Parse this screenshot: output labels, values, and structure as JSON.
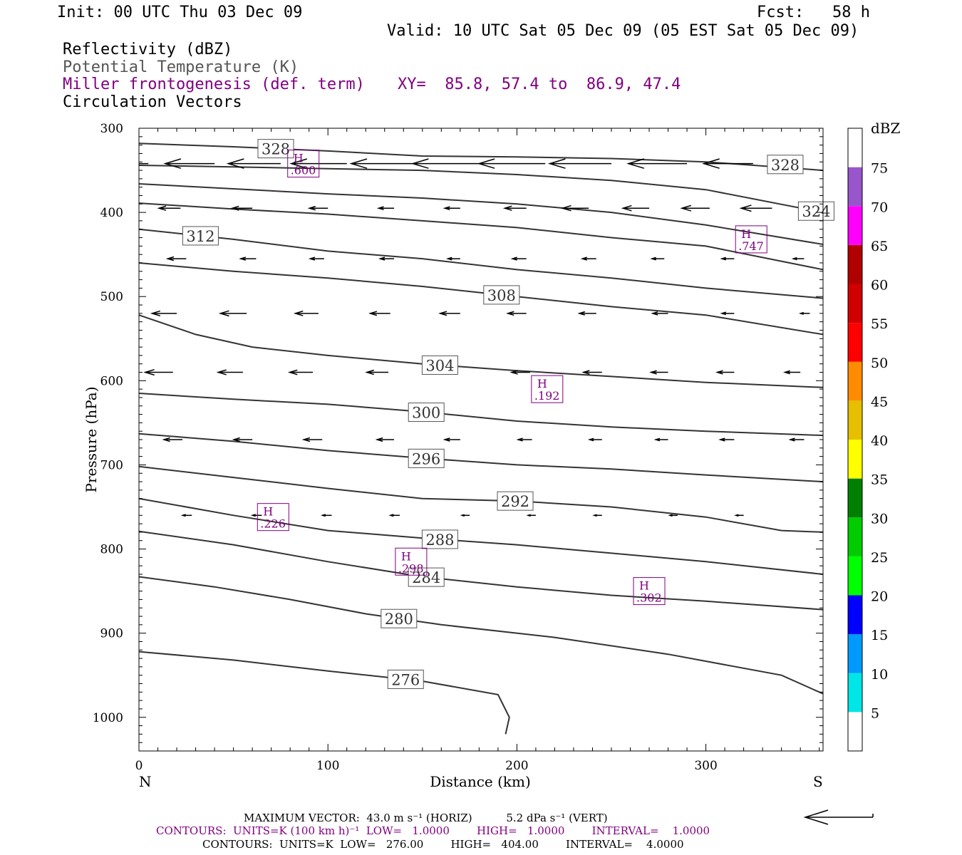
{
  "header": {
    "init": "Init: 00 UTC Thu 03 Dec 09",
    "fcst": "Fcst:   58 h",
    "valid": "Valid: 10 UTC Sat 05 Dec 09 (05 EST Sat 05 Dec 09)",
    "field1": "Reflectivity (dBZ)",
    "field2": "Potential Temperature (K)",
    "field3": "Miller frontogenesis (def. term)",
    "xy": "XY=  85.8, 57.4 to  86.9, 47.4",
    "field4": "Circulation Vectors"
  },
  "axes": {
    "ylabel": "Pressure (hPa)",
    "xlabel": "Distance (km)",
    "left_end": "N",
    "right_end": "S",
    "yticks": [
      "300",
      "400",
      "500",
      "600",
      "700",
      "800",
      "900",
      "1000"
    ],
    "xticks": [
      "0",
      "100",
      "200",
      "300"
    ]
  },
  "colorbar": {
    "title": "dBZ",
    "labels": [
      "75",
      "70",
      "65",
      "60",
      "55",
      "50",
      "45",
      "40",
      "35",
      "30",
      "25",
      "20",
      "15",
      "10",
      "5"
    ],
    "colors": [
      "#ffffff",
      "#00e5e5",
      "#0099ff",
      "#0000ff",
      "#00ff00",
      "#00cc00",
      "#008000",
      "#ffff00",
      "#e5bf00",
      "#ff8c00",
      "#ff0000",
      "#d00000",
      "#b00000",
      "#ff00ff",
      "#9955cc",
      "#ffffff"
    ]
  },
  "footer": {
    "line1": "MAXIMUM VECTOR:  43.0 m s⁻¹ (HORIZ)          5.2 dPa s⁻¹ (VERT)",
    "line2": "CONTOURS:  UNITS=K (100 km h)⁻¹  LOW=   1.0000        HIGH=   1.0000        INTERVAL=    1.0000",
    "line3": "CONTOURS:  UNITS=K  LOW=   276.00        HIGH=   404.00        INTERVAL=    4.0000"
  },
  "chart_data": {
    "type": "line",
    "xlim": [
      0,
      362
    ],
    "ylim": [
      300,
      1040
    ],
    "x_units": "km",
    "y_units": "hPa",
    "theta_contours": [
      {
        "value": 276,
        "label": "276",
        "x": [
          0,
          50,
          100,
          150,
          190,
          196,
          194
        ],
        "y": [
          922,
          932,
          945,
          957,
          973,
          1000,
          1020
        ]
      },
      {
        "value": 280,
        "label": "280",
        "x": [
          0,
          40,
          80,
          120,
          160,
          220,
          280,
          340,
          362
        ],
        "y": [
          833,
          845,
          860,
          877,
          890,
          905,
          925,
          950,
          972
        ]
      },
      {
        "value": 284,
        "label": "284",
        "x": [
          0,
          50,
          100,
          150,
          200,
          250,
          300,
          362
        ],
        "y": [
          779,
          795,
          815,
          833,
          845,
          855,
          862,
          872
        ]
      },
      {
        "value": 288,
        "label": "288",
        "x": [
          0,
          50,
          100,
          150,
          200,
          250,
          300,
          362
        ],
        "y": [
          740,
          760,
          778,
          787,
          795,
          805,
          815,
          830
        ]
      },
      {
        "value": 292,
        "label": "292",
        "x": [
          0,
          50,
          100,
          150,
          200,
          250,
          300,
          340,
          362
        ],
        "y": [
          702,
          715,
          728,
          740,
          743,
          750,
          762,
          778,
          780
        ]
      },
      {
        "value": 296,
        "label": "296",
        "x": [
          0,
          50,
          100,
          150,
          200,
          250,
          300,
          362
        ],
        "y": [
          663,
          672,
          683,
          692,
          700,
          705,
          712,
          720
        ]
      },
      {
        "value": 300,
        "label": "300",
        "x": [
          0,
          50,
          100,
          150,
          200,
          250,
          300,
          362
        ],
        "y": [
          615,
          622,
          628,
          637,
          648,
          655,
          660,
          665
        ]
      },
      {
        "value": 304,
        "label": "304",
        "x": [
          0,
          30,
          60,
          100,
          150,
          200,
          250,
          300,
          362
        ],
        "y": [
          522,
          545,
          560,
          570,
          580,
          588,
          595,
          602,
          608
        ]
      },
      {
        "value": 308,
        "label": "308",
        "x": [
          0,
          50,
          100,
          150,
          200,
          250,
          300,
          362
        ],
        "y": [
          460,
          470,
          478,
          488,
          500,
          512,
          522,
          545
        ]
      },
      {
        "value": 312,
        "label": "312",
        "x": [
          0,
          50,
          100,
          150,
          200,
          250,
          300,
          362
        ],
        "y": [
          420,
          432,
          446,
          455,
          468,
          478,
          490,
          502
        ]
      },
      {
        "value": 316,
        "label": "",
        "x": [
          0,
          50,
          100,
          150,
          200,
          250,
          300,
          362
        ],
        "y": [
          389,
          396,
          402,
          410,
          418,
          430,
          440,
          468
        ]
      },
      {
        "value": 320,
        "label": "",
        "x": [
          0,
          50,
          100,
          150,
          200,
          250,
          300,
          362
        ],
        "y": [
          366,
          372,
          378,
          383,
          390,
          400,
          415,
          438
        ]
      },
      {
        "value": 324,
        "label": "324",
        "x": [
          0,
          50,
          100,
          150,
          200,
          250,
          300,
          362
        ],
        "y": [
          344,
          346,
          348,
          350,
          355,
          362,
          373,
          400
        ]
      },
      {
        "value": 328,
        "label": "328",
        "x": [
          0,
          50,
          100,
          150,
          200,
          250,
          300,
          362
        ],
        "y": [
          318,
          322,
          327,
          333,
          334,
          336,
          340,
          350
        ]
      }
    ],
    "frontogenesis_maxima": [
      {
        "label": "H",
        "value": ".600",
        "x": 87,
        "y": 342
      },
      {
        "label": "H",
        "value": ".747",
        "x": 324,
        "y": 432
      },
      {
        "label": "H",
        "value": ".192",
        "x": 216,
        "y": 610
      },
      {
        "label": "H",
        "value": ".226",
        "x": 71,
        "y": 762
      },
      {
        "label": "H",
        "value": ".298",
        "x": 144,
        "y": 815
      },
      {
        "label": "H",
        "value": ".302",
        "x": 270,
        "y": 850
      }
    ],
    "circulation_vectors": [
      {
        "p": 342,
        "x": [
          5,
          40,
          75,
          110,
          145,
          180,
          215,
          250,
          290,
          325
        ],
        "u": [
          -30,
          -32,
          -34,
          -36,
          -40,
          -43,
          -43,
          -40,
          -38,
          -32
        ],
        "w": [
          0,
          0,
          0,
          0,
          0,
          0,
          0,
          0,
          0,
          0
        ]
      },
      {
        "p": 395,
        "x": [
          22,
          60,
          100,
          135,
          170,
          205,
          238,
          270,
          302,
          335
        ],
        "u": [
          -14,
          -13,
          -12,
          -10,
          -10,
          -14,
          -17,
          -17,
          -18,
          -20
        ],
        "w": [
          0,
          0,
          0,
          0,
          0,
          0,
          0,
          0,
          0,
          0
        ]
      },
      {
        "p": 455,
        "x": [
          25,
          62,
          98,
          135,
          170,
          205,
          242,
          278,
          315,
          352
        ],
        "u": [
          -12,
          -10,
          -9,
          -9,
          -8,
          -9,
          -9,
          -8,
          -8,
          -7
        ],
        "w": [
          0,
          0,
          0,
          0,
          0,
          0,
          0,
          0,
          0,
          0
        ]
      },
      {
        "p": 520,
        "x": [
          20,
          57,
          95,
          133,
          170,
          205,
          242,
          280,
          315,
          355
        ],
        "u": [
          -16,
          -17,
          -15,
          -13,
          -13,
          -12,
          -11,
          -10,
          -8,
          -6
        ],
        "w": [
          0,
          0,
          0,
          0,
          0,
          0,
          0,
          0,
          0,
          0
        ]
      },
      {
        "p": 590,
        "x": [
          18,
          55,
          92,
          132,
          168,
          207,
          245,
          280,
          315,
          350
        ],
        "u": [
          -18,
          -16,
          -15,
          -14,
          -12,
          -12,
          -12,
          -11,
          -11,
          -10
        ],
        "w": [
          0,
          0,
          0,
          0,
          0,
          0,
          0,
          0,
          0,
          0
        ]
      },
      {
        "p": 670,
        "x": [
          23,
          60,
          97,
          135,
          170,
          208,
          245,
          280,
          315,
          352
        ],
        "u": [
          -12,
          -12,
          -12,
          -11,
          -10,
          -9,
          -8,
          -8,
          -9,
          -9
        ],
        "w": [
          0,
          0,
          0,
          0,
          0,
          0,
          0,
          0,
          0,
          0
        ]
      },
      {
        "p": 760,
        "x": [
          28,
          65,
          102,
          138,
          175,
          210,
          245,
          285,
          320
        ],
        "u": [
          -6,
          -6,
          -6,
          -6,
          -5,
          -5,
          -5,
          -5,
          -5
        ],
        "w": [
          0,
          0,
          0,
          0,
          0,
          0,
          0,
          0,
          0
        ]
      }
    ]
  }
}
